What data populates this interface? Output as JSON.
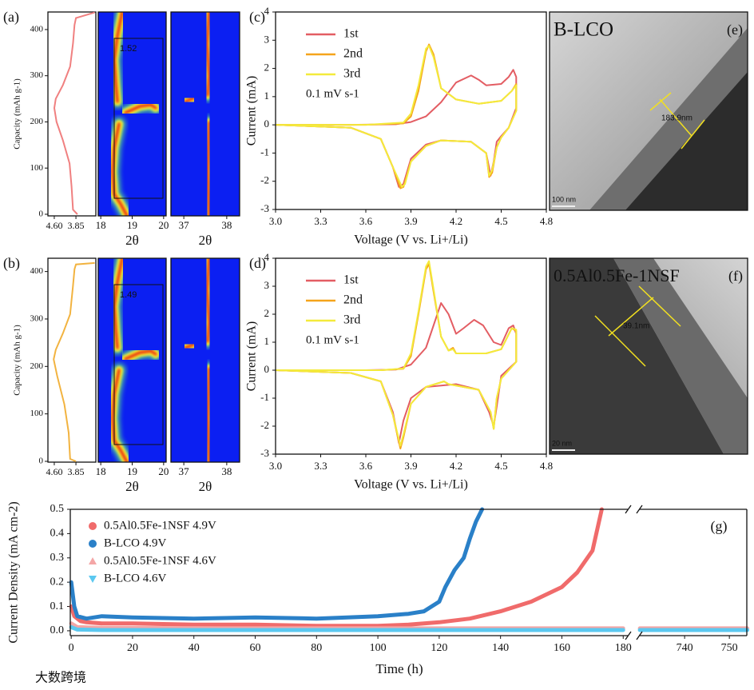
{
  "watermark": "大数跨境",
  "chart_data": [
    {
      "type": "capacity",
      "panel_label": "(a)",
      "ylabel": "Capacity (mAh g-1)",
      "color": "#f08080",
      "xlim": [
        4.82,
        3.16
      ],
      "xticks": [
        {
          "value": 4.6,
          "label": "4.60"
        },
        {
          "value": 3.85,
          "label": "3.85"
        }
      ],
      "ylim": [
        -3.5,
        438
      ],
      "yticks": [
        0,
        100,
        200,
        300,
        400
      ],
      "x": [
        3.8,
        3.95,
        4.0,
        4.07,
        4.3,
        4.52,
        4.6,
        4.55,
        4.3,
        4.05,
        3.95,
        3.9,
        3.85,
        3.2
      ],
      "values": [
        0,
        10,
        60,
        110,
        160,
        200,
        230,
        250,
        280,
        320,
        370,
        410,
        425,
        437
      ],
      "heatmaps": [
        {
          "xlabel": "2θ",
          "xlim": [
            17.92,
            20.08
          ],
          "xticks": [
            18,
            19,
            20
          ]
        },
        {
          "xlabel": "2θ",
          "xlim": [
            36.7,
            38.3
          ],
          "xticks": [
            37,
            38
          ]
        }
      ],
      "annotation": "1.52"
    },
    {
      "type": "capacity",
      "panel_label": "(b)",
      "ylabel": "Capacity (mAh g-1)",
      "color": "#f2b340",
      "xlim": [
        4.82,
        3.16
      ],
      "xticks": [
        {
          "value": 4.6,
          "label": "4.60"
        },
        {
          "value": 3.85,
          "label": "3.85"
        }
      ],
      "ylim": [
        -1.7,
        428
      ],
      "yticks": [
        0,
        100,
        200,
        300,
        400
      ],
      "x": [
        3.85,
        4.05,
        4.1,
        4.25,
        4.5,
        4.62,
        4.55,
        4.3,
        4.05,
        3.95,
        3.9,
        3.85,
        3.2
      ],
      "values": [
        0,
        5,
        60,
        120,
        180,
        215,
        235,
        270,
        310,
        370,
        405,
        415,
        418
      ],
      "heatmaps": [
        {
          "xlabel": "2θ",
          "xlim": [
            17.92,
            20.08
          ],
          "xticks": [
            18,
            19,
            20
          ]
        },
        {
          "xlabel": "2θ",
          "xlim": [
            36.7,
            38.3
          ],
          "xticks": [
            37,
            38
          ]
        }
      ],
      "annotation": "1.49"
    },
    {
      "type": "cv",
      "panel_label": "(c)",
      "xlabel": "Voltage (V vs. Li+/Li)",
      "ylabel": "Current (mA)",
      "note": "0.1 mV s-1",
      "xlim": [
        3.0,
        4.8
      ],
      "xticks": [
        {
          "value": 3,
          "label": "3.0"
        },
        3.3,
        3.6,
        3.9,
        4.2,
        4.5,
        4.8
      ],
      "ylim": [
        -3,
        4
      ],
      "yticks": [
        -3,
        -2,
        -1,
        0,
        1,
        2,
        3,
        4
      ],
      "series": [
        {
          "name": "1st",
          "color": "#e35d63",
          "x": [
            3.0,
            3.5,
            3.8,
            3.9,
            4.0,
            4.1,
            4.2,
            4.3,
            4.35,
            4.4,
            4.5,
            4.55,
            4.58,
            4.6,
            4.6,
            4.55,
            4.5,
            4.47,
            4.45,
            4.43,
            4.4,
            4.3,
            4.1,
            4.0,
            3.9,
            3.85,
            3.82,
            3.78,
            3.7,
            3.5,
            3.0
          ],
          "values": [
            0,
            0,
            0.02,
            0.1,
            0.3,
            0.8,
            1.5,
            1.75,
            1.6,
            1.4,
            1.45,
            1.7,
            1.95,
            1.7,
            0.6,
            -0.1,
            -0.4,
            -0.6,
            -1.3,
            -1.8,
            -1.0,
            -0.6,
            -0.55,
            -0.7,
            -1.2,
            -2.1,
            -2.2,
            -1.5,
            -0.5,
            -0.1,
            0
          ]
        },
        {
          "name": "2nd",
          "color": "#f5a41b",
          "x": [
            3.0,
            3.6,
            3.85,
            3.9,
            3.95,
            4.0,
            4.02,
            4.05,
            4.1,
            4.2,
            4.35,
            4.5,
            4.57,
            4.6,
            4.6,
            4.55,
            4.5,
            4.47,
            4.44,
            4.42,
            4.4,
            4.3,
            4.1,
            4.0,
            3.9,
            3.85,
            3.83,
            3.78,
            3.7,
            3.5,
            3.0
          ],
          "values": [
            0,
            0,
            0.05,
            0.3,
            1.2,
            2.6,
            2.85,
            2.5,
            1.3,
            0.9,
            0.75,
            0.85,
            1.2,
            1.45,
            0.5,
            -0.1,
            -0.45,
            -0.8,
            -1.7,
            -1.85,
            -1.0,
            -0.6,
            -0.55,
            -0.75,
            -1.3,
            -2.2,
            -2.25,
            -1.5,
            -0.5,
            -0.1,
            0
          ]
        },
        {
          "name": "3rd",
          "color": "#f4ea3c",
          "x": [
            3.0,
            3.6,
            3.85,
            3.9,
            3.95,
            4.0,
            4.02,
            4.05,
            4.1,
            4.2,
            4.35,
            4.5,
            4.57,
            4.6,
            4.6,
            4.55,
            4.5,
            4.47,
            4.44,
            4.42,
            4.4,
            4.3,
            4.1,
            4.0,
            3.9,
            3.86,
            3.84,
            3.78,
            3.7,
            3.5,
            3.0
          ],
          "values": [
            0,
            0,
            0.08,
            0.4,
            1.4,
            2.7,
            2.8,
            2.4,
            1.3,
            0.9,
            0.75,
            0.85,
            1.2,
            1.4,
            0.5,
            -0.1,
            -0.45,
            -0.8,
            -1.6,
            -1.8,
            -1.0,
            -0.6,
            -0.55,
            -0.75,
            -1.3,
            -2.1,
            -2.2,
            -1.5,
            -0.5,
            -0.1,
            0
          ]
        }
      ]
    },
    {
      "type": "cv",
      "panel_label": "(d)",
      "xlabel": "Voltage (V vs. Li+/Li)",
      "ylabel": "Current (mA)",
      "note": "0.1 mV s-1",
      "xlim": [
        3.0,
        4.8
      ],
      "xticks": [
        {
          "value": 3,
          "label": "3.0"
        },
        3.3,
        3.6,
        3.9,
        4.2,
        4.5,
        4.8
      ],
      "ylim": [
        -3,
        4
      ],
      "yticks": [
        -3,
        -2,
        -1,
        0,
        1,
        2,
        3,
        4
      ],
      "series": [
        {
          "name": "1st",
          "color": "#e35d63",
          "x": [
            3.0,
            3.6,
            3.8,
            3.9,
            4.0,
            4.05,
            4.1,
            4.15,
            4.2,
            4.25,
            4.32,
            4.38,
            4.45,
            4.5,
            4.55,
            4.58,
            4.6,
            4.6,
            4.5,
            4.47,
            4.45,
            4.42,
            4.35,
            4.2,
            4.0,
            3.9,
            3.85,
            3.82,
            3.78,
            3.7,
            3.5,
            3.0
          ],
          "values": [
            0,
            0,
            0.02,
            0.2,
            0.8,
            1.6,
            2.4,
            2.0,
            1.3,
            1.5,
            1.8,
            1.6,
            1.0,
            0.9,
            1.5,
            1.6,
            1.3,
            0.3,
            -0.2,
            -1.3,
            -2.0,
            -1.5,
            -0.7,
            -0.5,
            -0.6,
            -1.0,
            -1.8,
            -2.6,
            -1.5,
            -0.4,
            -0.1,
            0
          ]
        },
        {
          "name": "2nd",
          "color": "#f5a41b",
          "x": [
            3.0,
            3.7,
            3.85,
            3.9,
            3.95,
            4.0,
            4.02,
            4.05,
            4.1,
            4.15,
            4.18,
            4.2,
            4.4,
            4.5,
            4.57,
            4.6,
            4.6,
            4.5,
            4.47,
            4.45,
            4.43,
            4.35,
            4.15,
            4.12,
            4.0,
            3.9,
            3.85,
            3.83,
            3.78,
            3.7,
            3.5,
            3.0
          ],
          "values": [
            0,
            0,
            0.05,
            0.5,
            2.0,
            3.6,
            3.8,
            2.8,
            1.2,
            0.7,
            0.8,
            0.6,
            0.6,
            0.75,
            1.5,
            1.4,
            0.3,
            -0.3,
            -1.0,
            -2.1,
            -1.5,
            -0.7,
            -0.5,
            -0.4,
            -0.6,
            -1.2,
            -2.4,
            -2.8,
            -1.6,
            -0.4,
            -0.1,
            0
          ]
        },
        {
          "name": "3rd",
          "color": "#f4ea3c",
          "x": [
            3.0,
            3.7,
            3.85,
            3.9,
            3.95,
            4.0,
            4.02,
            4.05,
            4.1,
            4.15,
            4.18,
            4.2,
            4.4,
            4.5,
            4.57,
            4.6,
            4.6,
            4.5,
            4.47,
            4.45,
            4.43,
            4.35,
            4.15,
            4.12,
            4.0,
            3.9,
            3.85,
            3.83,
            3.78,
            3.7,
            3.5,
            3.0
          ],
          "values": [
            0,
            0,
            0.06,
            0.6,
            2.1,
            3.7,
            3.9,
            2.9,
            1.2,
            0.7,
            0.75,
            0.6,
            0.6,
            0.75,
            1.5,
            1.45,
            0.3,
            -0.3,
            -1.0,
            -2.1,
            -1.5,
            -0.7,
            -0.5,
            -0.4,
            -0.6,
            -1.2,
            -2.3,
            -2.7,
            -1.6,
            -0.4,
            -0.1,
            0
          ]
        }
      ]
    },
    {
      "type": "image",
      "panel_label": "(e)",
      "title": "B-LCO",
      "annotation": "183.9nm",
      "scale_bar": "100 nm"
    },
    {
      "type": "image",
      "panel_label": "(f)",
      "title": "0.5Al0.5Fe-1NSF",
      "annotation": "39.1nm",
      "scale_bar": "20 nm"
    },
    {
      "type": "broken-line",
      "panel_label": "(g)",
      "xlabel": "Time (h)",
      "ylabel": "Current Density (mA cm-2)",
      "ylim": [
        -0.02,
        0.5
      ],
      "yticks": [
        {
          "value": 0,
          "label": "0.0"
        },
        0.1,
        0.2,
        0.3,
        0.4,
        0.5
      ],
      "segments": [
        {
          "xlim": [
            -0.3,
            181.5
          ],
          "xticks": [
            0,
            20,
            40,
            60,
            80,
            100,
            120,
            140,
            160,
            180
          ]
        },
        {
          "xlim": [
            729.8,
            753.9
          ],
          "xticks": [
            740,
            750
          ]
        }
      ],
      "series": [
        {
          "name": "0.5Al0.5Fe-1NSF  4.9V",
          "color": "#f06b6b",
          "marker": "circle",
          "x": [
            0,
            1,
            3,
            5,
            10,
            20,
            40,
            60,
            80,
            100,
            110,
            120,
            130,
            140,
            150,
            160,
            165,
            170,
            173
          ],
          "values": [
            0.1,
            0.06,
            0.04,
            0.035,
            0.03,
            0.03,
            0.025,
            0.025,
            0.02,
            0.02,
            0.025,
            0.035,
            0.05,
            0.08,
            0.12,
            0.18,
            0.24,
            0.33,
            0.5
          ]
        },
        {
          "name": "B-LCO  4.9V",
          "color": "#2a80c8",
          "marker": "circle",
          "x": [
            0,
            1,
            2,
            5,
            10,
            20,
            40,
            60,
            80,
            100,
            110,
            115,
            120,
            122,
            125,
            128,
            130,
            132,
            134
          ],
          "values": [
            0.2,
            0.1,
            0.06,
            0.05,
            0.06,
            0.055,
            0.05,
            0.055,
            0.05,
            0.06,
            0.07,
            0.08,
            0.12,
            0.18,
            0.25,
            0.3,
            0.38,
            0.45,
            0.5
          ]
        },
        {
          "name": "0.5Al0.5Fe-1NSF  4.6V",
          "color": "#f4a6a6",
          "marker": "triangle-up",
          "x": [
            0,
            2,
            10,
            50,
            100,
            180,
            730,
            754
          ],
          "values": [
            0.03,
            0.015,
            0.012,
            0.01,
            0.01,
            0.01,
            0.01,
            0.01
          ]
        },
        {
          "name": "B-LCO  4.6V",
          "color": "#5bc8f0",
          "marker": "triangle-down",
          "x": [
            0,
            2,
            10,
            50,
            100,
            180,
            730,
            754
          ],
          "values": [
            0.015,
            0.005,
            0.003,
            0.003,
            0.003,
            0.003,
            0.003,
            0.003
          ]
        }
      ]
    }
  ]
}
